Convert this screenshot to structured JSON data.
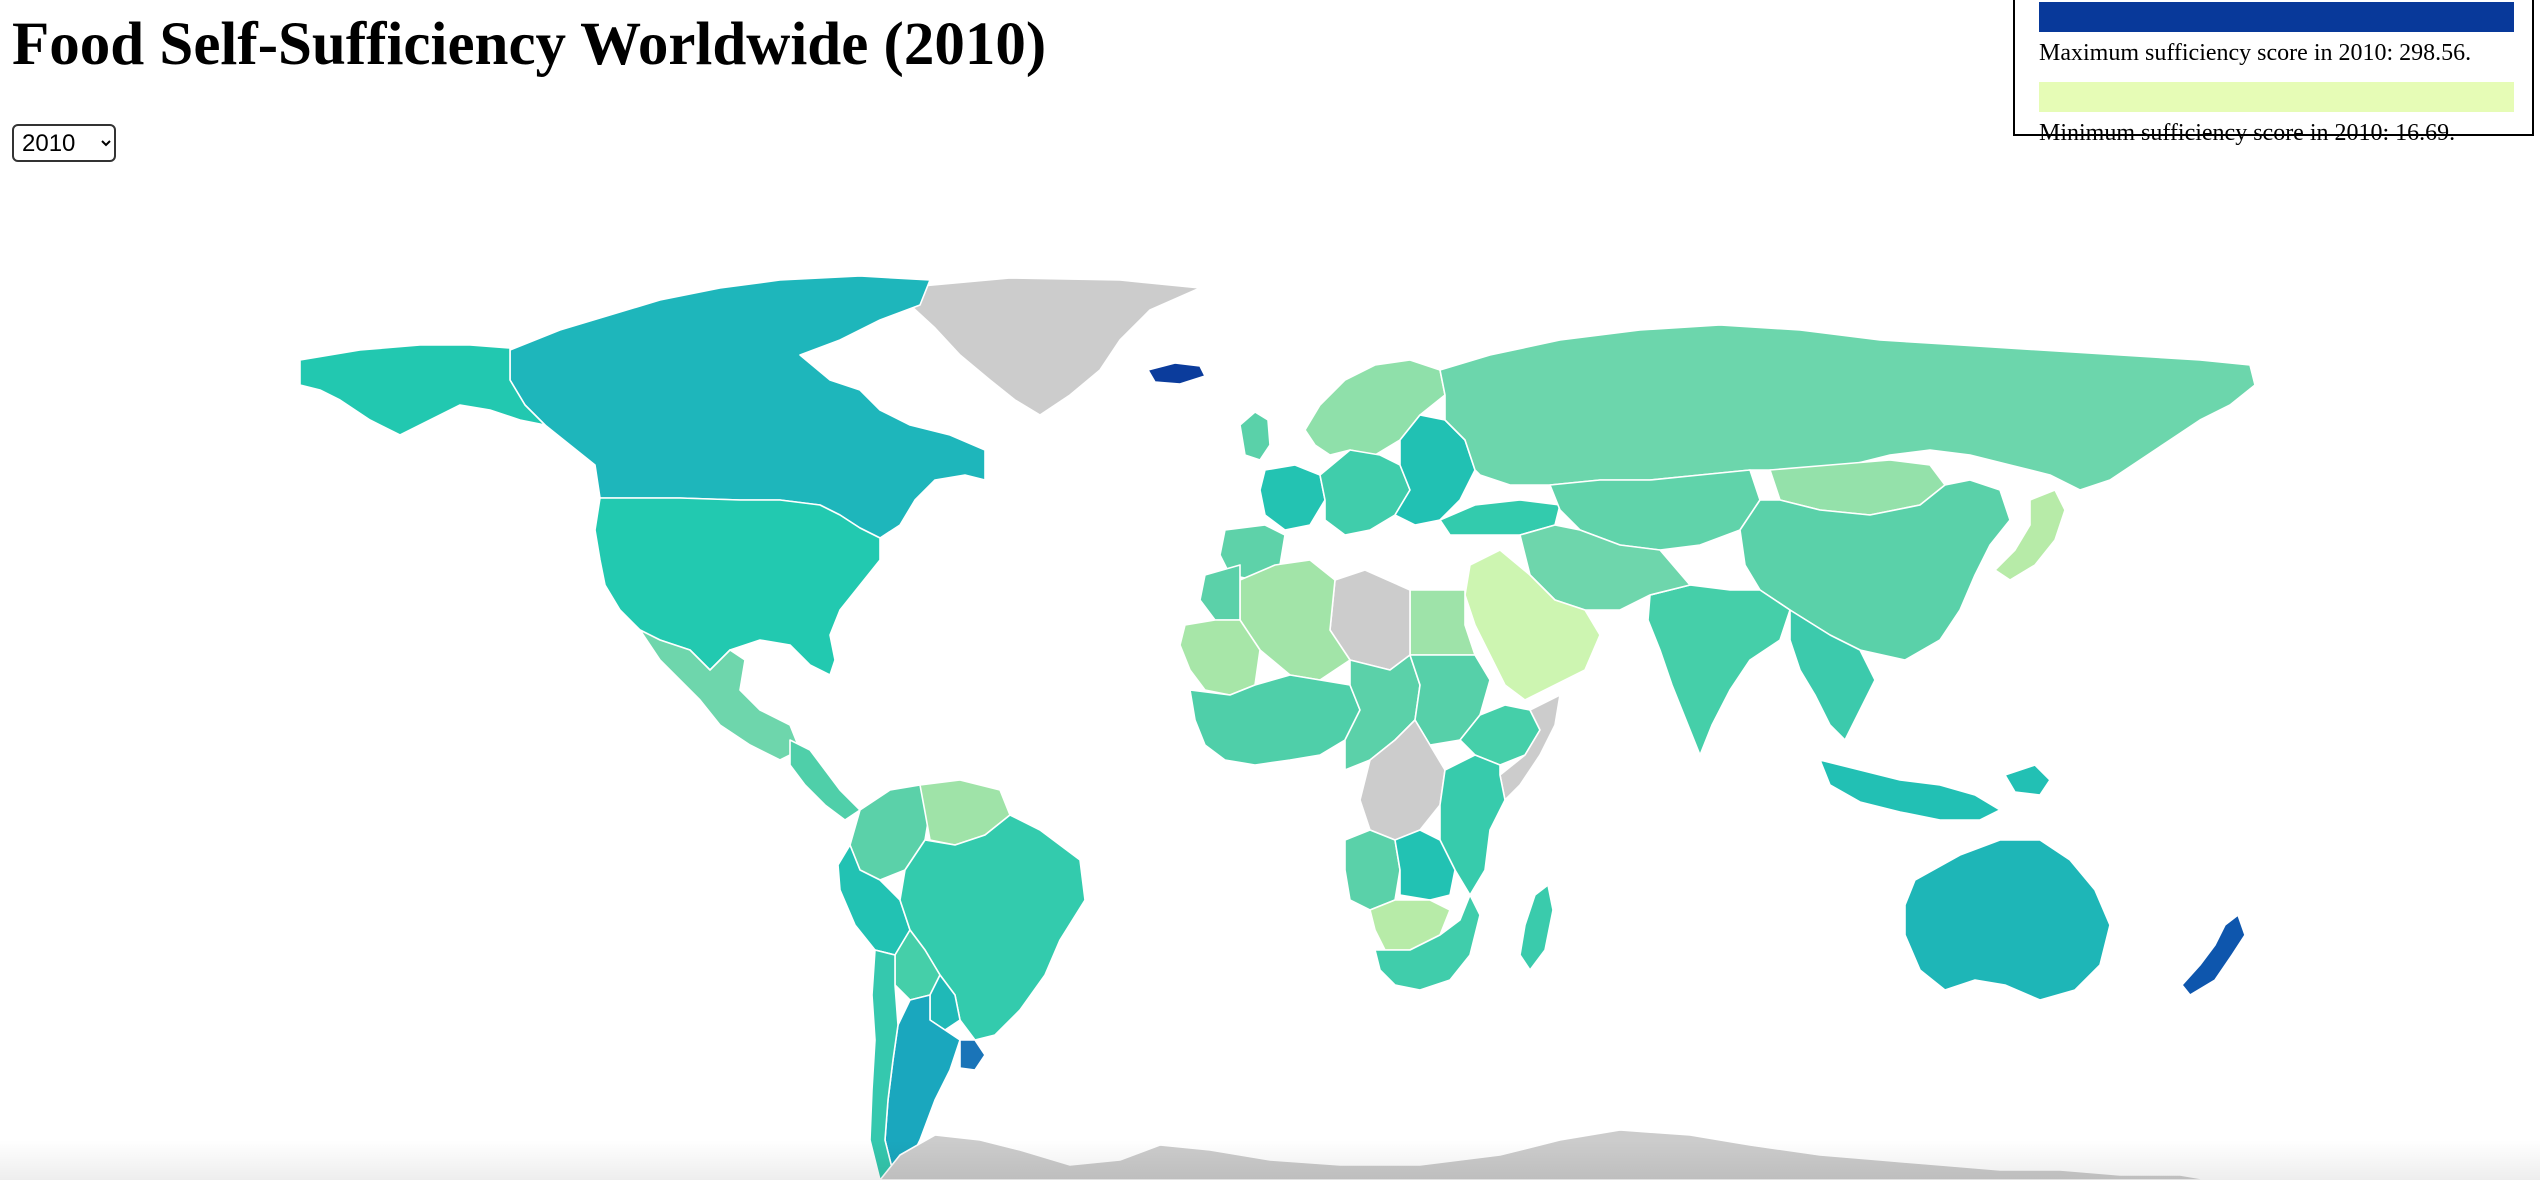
{
  "header": {
    "title": "Food Self-Sufficiency Worldwide (2010)"
  },
  "year_select": {
    "selected": "2010",
    "options": [
      "2010"
    ]
  },
  "legend": {
    "max_label": "Maximum sufficiency score in 2010: 298.56.",
    "min_label": "Minimum sufficiency score in 2010: 16.69.",
    "max_color": "#08399a",
    "min_color": "#e6fcb6"
  },
  "map": {
    "no_data_color": "#cccccc",
    "regions": [
      {
        "name": "greenland",
        "color": "#cccccc"
      },
      {
        "name": "canada",
        "color": "#1eb6bb"
      },
      {
        "name": "alaska",
        "color": "#22c8b0"
      },
      {
        "name": "usa",
        "color": "#22c9b0"
      },
      {
        "name": "mexico",
        "color": "#6ed6ac"
      },
      {
        "name": "central-america",
        "color": "#4fcfa9"
      },
      {
        "name": "colombia",
        "color": "#5bd1a9"
      },
      {
        "name": "venezuela",
        "color": "#9fe3a8"
      },
      {
        "name": "peru",
        "color": "#22c2b3"
      },
      {
        "name": "brazil",
        "color": "#33cbad"
      },
      {
        "name": "bolivia",
        "color": "#45cfa9"
      },
      {
        "name": "paraguay",
        "color": "#1fb9b7"
      },
      {
        "name": "argentina",
        "color": "#1aa7be"
      },
      {
        "name": "chile",
        "color": "#35c8ae"
      },
      {
        "name": "uruguay",
        "color": "#1a74b8"
      },
      {
        "name": "iceland",
        "color": "#0b3c9c"
      },
      {
        "name": "uk",
        "color": "#5ad1a9"
      },
      {
        "name": "scandinavia",
        "color": "#8fe0aa"
      },
      {
        "name": "france",
        "color": "#23c3b2"
      },
      {
        "name": "iberia",
        "color": "#5ed2a9"
      },
      {
        "name": "central-europe",
        "color": "#40cdab"
      },
      {
        "name": "eastern-europe",
        "color": "#21c1b3"
      },
      {
        "name": "russia",
        "color": "#6cd6ac"
      },
      {
        "name": "turkey",
        "color": "#33cbad"
      },
      {
        "name": "kazakhstan",
        "color": "#60d3aa"
      },
      {
        "name": "mongolia",
        "color": "#94e1aa"
      },
      {
        "name": "china",
        "color": "#5ad1a9"
      },
      {
        "name": "india",
        "color": "#45cfa9"
      },
      {
        "name": "iran",
        "color": "#6ed6ac"
      },
      {
        "name": "arabian-peninsula",
        "color": "#cdf5b1"
      },
      {
        "name": "egypt",
        "color": "#9ee3a9"
      },
      {
        "name": "libya",
        "color": "#cccccc"
      },
      {
        "name": "algeria",
        "color": "#a2e4a8"
      },
      {
        "name": "morocco",
        "color": "#5bd1a9"
      },
      {
        "name": "west-sahara-mauritania",
        "color": "#a7e6a8"
      },
      {
        "name": "west-africa",
        "color": "#4fcfa9"
      },
      {
        "name": "central-africa",
        "color": "#5bd1a9"
      },
      {
        "name": "sudan",
        "color": "#56d0a9"
      },
      {
        "name": "ethiopia",
        "color": "#45cfa9"
      },
      {
        "name": "horn-of-africa",
        "color": "#cccccc"
      },
      {
        "name": "drc",
        "color": "#cccccc"
      },
      {
        "name": "east-africa",
        "color": "#37cbac"
      },
      {
        "name": "angola",
        "color": "#5ad1a9"
      },
      {
        "name": "zambia",
        "color": "#22c2b3"
      },
      {
        "name": "namibia-botswana",
        "color": "#b7eba8"
      },
      {
        "name": "southern-africa",
        "color": "#40cdab"
      },
      {
        "name": "madagascar",
        "color": "#3acbac"
      },
      {
        "name": "southeast-asia",
        "color": "#3ccaac"
      },
      {
        "name": "indonesia",
        "color": "#22c0b4"
      },
      {
        "name": "japan",
        "color": "#b7eba8"
      },
      {
        "name": "new-guinea",
        "color": "#22c0b4"
      },
      {
        "name": "australia",
        "color": "#1eb6b7"
      },
      {
        "name": "new-zealand",
        "color": "#0e56ad"
      },
      {
        "name": "antarctica",
        "color": "#cccccc"
      }
    ]
  }
}
